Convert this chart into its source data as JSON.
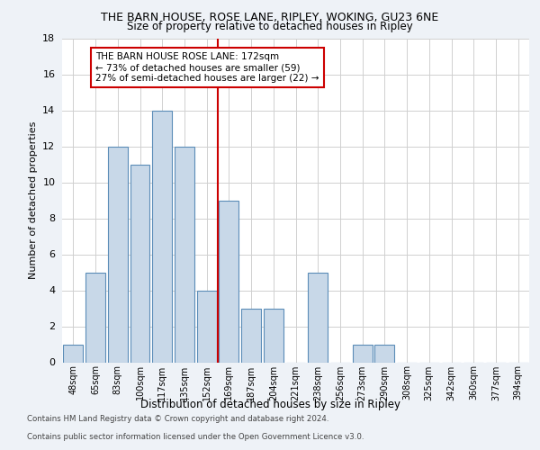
{
  "title1": "THE BARN HOUSE, ROSE LANE, RIPLEY, WOKING, GU23 6NE",
  "title2": "Size of property relative to detached houses in Ripley",
  "xlabel": "Distribution of detached houses by size in Ripley",
  "ylabel": "Number of detached properties",
  "bar_labels": [
    "48sqm",
    "65sqm",
    "83sqm",
    "100sqm",
    "117sqm",
    "135sqm",
    "152sqm",
    "169sqm",
    "187sqm",
    "204sqm",
    "221sqm",
    "238sqm",
    "256sqm",
    "273sqm",
    "290sqm",
    "308sqm",
    "325sqm",
    "342sqm",
    "360sqm",
    "377sqm",
    "394sqm"
  ],
  "bar_values": [
    1,
    5,
    12,
    11,
    14,
    12,
    4,
    9,
    3,
    3,
    0,
    5,
    0,
    1,
    1,
    0,
    0,
    0,
    0,
    0,
    0
  ],
  "bar_color": "#c8d8e8",
  "bar_edge_color": "#5b8db8",
  "red_line_x": 6.5,
  "annotation_text": "THE BARN HOUSE ROSE LANE: 172sqm\n← 73% of detached houses are smaller (59)\n27% of semi-detached houses are larger (22) →",
  "annotation_box_color": "#ffffff",
  "annotation_box_edge_color": "#cc0000",
  "ylim": [
    0,
    18
  ],
  "yticks": [
    0,
    2,
    4,
    6,
    8,
    10,
    12,
    14,
    16,
    18
  ],
  "footer1": "Contains HM Land Registry data © Crown copyright and database right 2024.",
  "footer2": "Contains public sector information licensed under the Open Government Licence v3.0.",
  "bg_color": "#eef2f7",
  "plot_bg_color": "#ffffff",
  "grid_color": "#d0d0d0"
}
